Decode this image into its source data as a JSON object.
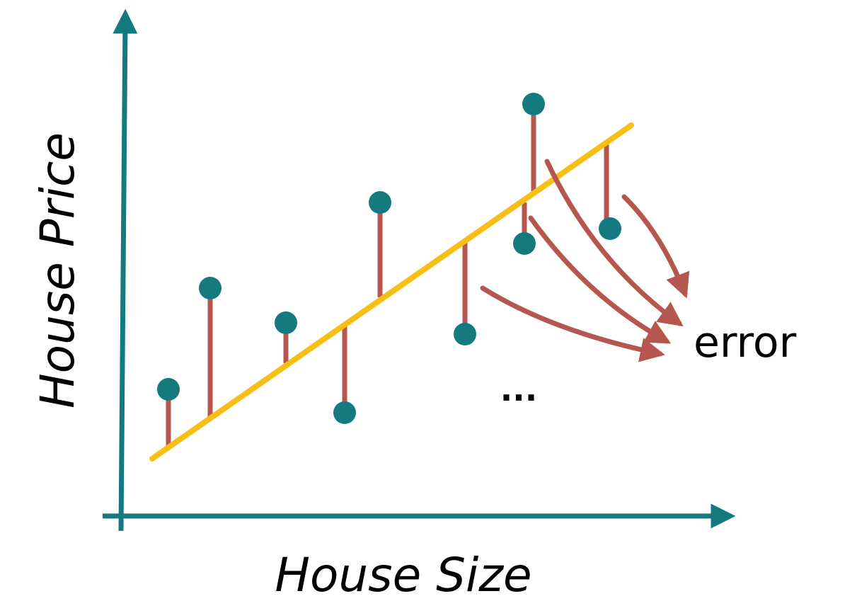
{
  "x_axis_label": "House Size",
  "y_axis_label": "House Price",
  "error_label": "error",
  "ellipsis": "...",
  "colors": {
    "axis": "#147a80",
    "point": "#147a80",
    "fit_line": "#f7be16",
    "residual": "#b5574f",
    "text": "#000000"
  },
  "icons": {
    "axis_arrowhead": "arrowhead-icon",
    "error_arrow": "curved-arrow-icon"
  }
}
